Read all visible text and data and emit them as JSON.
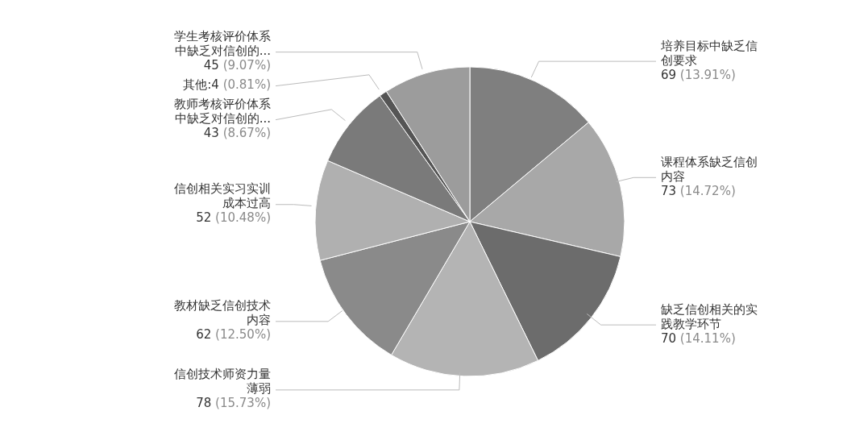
{
  "chart_data": {
    "type": "pie",
    "categories": [
      "培养目标中缺乏信创要求",
      "课程体系缺乏信创内容",
      "缺乏信创相关的实践教学环节",
      "信创技术师资力量薄弱",
      "教材缺乏信创技术内容",
      "信创相关实习实训成本过高",
      "教师考核评价体系中缺乏对信创的...",
      "其他",
      "学生考核评价体系中缺乏对信创的..."
    ],
    "values": [
      69,
      73,
      70,
      78,
      62,
      52,
      43,
      4,
      45
    ],
    "value_labels": [
      "69 (13.91%)",
      "73 (14.72%)",
      "70 (14.11%)",
      "78 (15.73%)",
      "62 (12.50%)",
      "52 (10.48%)",
      "43 (8.67%)",
      ":4 (0.81%)",
      "45 (9.07%)"
    ],
    "colors": [
      "#7f7f7f",
      "#a8a8a8",
      "#6c6c6c",
      "#b4b4b4",
      "#8a8a8a",
      "#b0b0b0",
      "#7a7a7a",
      "#555555",
      "#9c9c9c"
    ],
    "legend": false
  }
}
